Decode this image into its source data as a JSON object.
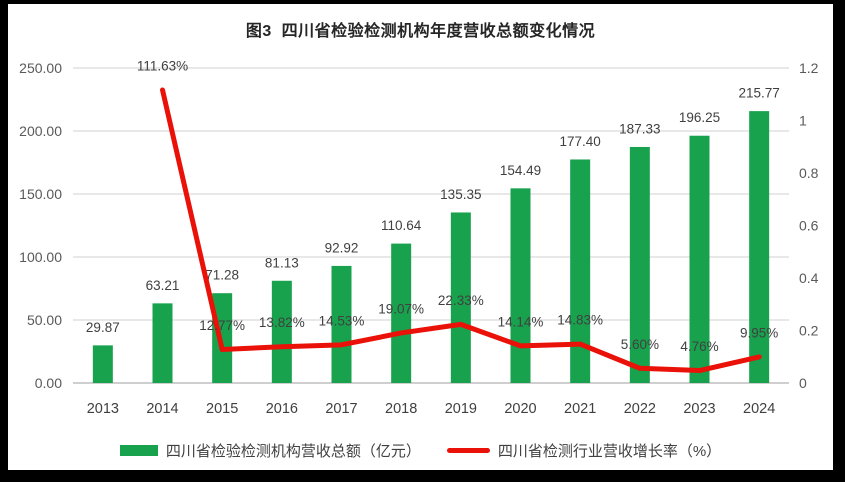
{
  "title": "图3  四川省检验检测机构年度营收总额变化情况",
  "chart_data": {
    "type": "bar",
    "subtype": "combo-bar-line",
    "categories": [
      "2013",
      "2014",
      "2015",
      "2016",
      "2017",
      "2018",
      "2019",
      "2020",
      "2021",
      "2022",
      "2023",
      "2024"
    ],
    "series": [
      {
        "name": "四川省检验检测机构营收总额（亿元）",
        "type": "bar",
        "axis": "left",
        "values": [
          29.87,
          63.21,
          71.28,
          81.13,
          92.92,
          110.64,
          135.35,
          154.49,
          177.4,
          187.33,
          196.25,
          215.77
        ],
        "labels": [
          "29.87",
          "63.21",
          "71.28",
          "81.13",
          "92.92",
          "110.64",
          "135.35",
          "154.49",
          "177.40",
          "187.33",
          "196.25",
          "215.77"
        ]
      },
      {
        "name": "四川省检测行业营收增长率（%）",
        "type": "line",
        "axis": "right",
        "values": [
          null,
          1.1163,
          0.1277,
          0.1382,
          0.1453,
          0.1907,
          0.2233,
          0.1414,
          0.1483,
          0.056,
          0.0476,
          0.0995
        ],
        "labels": [
          "",
          "111.63%",
          "12.77%",
          "13.82%",
          "14.53%",
          "19.07%",
          "22.33%",
          "14.14%",
          "14.83%",
          "5.60%",
          "4.76%",
          "9.95%"
        ]
      }
    ],
    "left_axis": {
      "min": 0,
      "max": 250,
      "ticks": [
        "0.00",
        "50.00",
        "100.00",
        "150.00",
        "200.00",
        "250.00"
      ]
    },
    "right_axis": {
      "min": 0,
      "max": 1.2,
      "ticks": [
        "0",
        "0.2",
        "0.4",
        "0.6",
        "0.8",
        "1",
        "1.2"
      ]
    },
    "grid": true,
    "legend_position": "bottom"
  },
  "colors": {
    "bar": "#18a24d",
    "line": "#ea1109",
    "grid": "#d9d9d9",
    "baseline": "#bfbfbf",
    "tick_text": "#595959",
    "label_text": "#404040",
    "title_text": "#262626"
  }
}
